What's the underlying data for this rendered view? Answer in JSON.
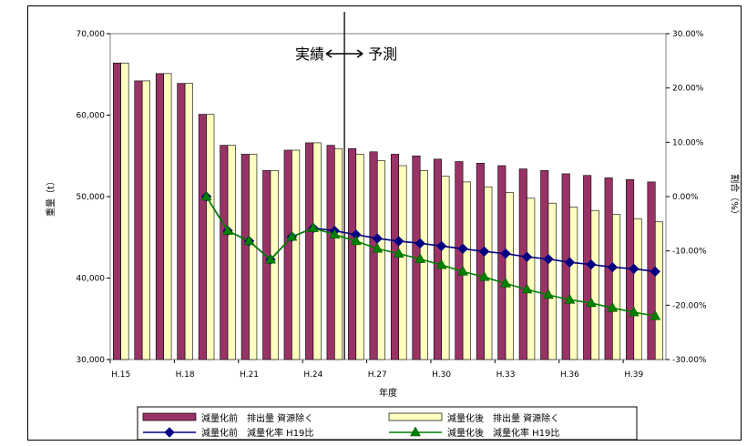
{
  "chart_data": {
    "type": "bar+line",
    "x": [
      "H.15",
      "H.16",
      "H.17",
      "H.18",
      "H.19",
      "H.20",
      "H.21",
      "H.22",
      "H.23",
      "H.24",
      "H.25",
      "H.26",
      "H.27",
      "H.28",
      "H.29",
      "H.30",
      "H.31",
      "H.32",
      "H.33",
      "H.34",
      "H.35",
      "H.36",
      "H.37",
      "H.38",
      "H.39",
      "H.40"
    ],
    "x_tick_labels": [
      "H.15",
      "H.18",
      "H.21",
      "H.24",
      "H.27",
      "H.30",
      "H.33",
      "H.36",
      "H.39"
    ],
    "xlabel": "年度",
    "ylabel_left": "重量（t）",
    "ylabel_right": "割合（%）",
    "ylim_left": [
      30000,
      70000
    ],
    "ylim_right": [
      -30,
      30
    ],
    "y_ticks_left": [
      "30,000",
      "40,000",
      "50,000",
      "60,000",
      "70,000"
    ],
    "y_ticks_right": [
      "-30.00%",
      "-20.00%",
      "-10.00%",
      "0.00%",
      "10.00%",
      "20.00%",
      "30.00%"
    ],
    "annotation": {
      "actual": "実績",
      "forecast": "予測",
      "divider_between": [
        "H.25",
        "H.26"
      ]
    },
    "series": [
      {
        "name": "減量化前　排出量 資源除く",
        "kind": "bar",
        "axis": "left",
        "color": "#993366",
        "values": [
          66400,
          64200,
          65100,
          63900,
          60100,
          56300,
          55200,
          53200,
          55700,
          56600,
          56300,
          55900,
          55500,
          55200,
          55000,
          54600,
          54300,
          54100,
          53800,
          53400,
          53200,
          52800,
          52600,
          52300,
          52100,
          51800
        ]
      },
      {
        "name": "減量化後　排出量 資源除く",
        "kind": "bar",
        "axis": "left",
        "color": "#ffffc0",
        "values": [
          66400,
          64200,
          65100,
          63900,
          60100,
          56300,
          55200,
          53200,
          55700,
          56600,
          55900,
          55200,
          54400,
          53800,
          53200,
          52500,
          51800,
          51200,
          50500,
          49800,
          49200,
          48700,
          48300,
          47800,
          47300,
          46900
        ]
      },
      {
        "name": "減量化前　減量化率 H19比",
        "kind": "line",
        "axis": "right",
        "color": "#000080",
        "marker": "diamond",
        "values": [
          null,
          null,
          null,
          null,
          0.0,
          -6.3,
          -8.2,
          -11.6,
          -7.4,
          -5.8,
          -6.3,
          -7.0,
          -7.7,
          -8.2,
          -8.6,
          -9.1,
          -9.6,
          -10.1,
          -10.5,
          -11.1,
          -11.5,
          -12.1,
          -12.5,
          -13.0,
          -13.3,
          -13.8
        ]
      },
      {
        "name": "減量化後　減量化率 H19比",
        "kind": "line",
        "axis": "right",
        "color": "#008000",
        "marker": "triangle",
        "values": [
          null,
          null,
          null,
          null,
          0.0,
          -6.3,
          -8.2,
          -11.6,
          -7.4,
          -5.8,
          -7.0,
          -8.2,
          -9.6,
          -10.5,
          -11.5,
          -12.6,
          -13.8,
          -14.8,
          -16.0,
          -17.1,
          -18.1,
          -19.0,
          -19.6,
          -20.5,
          -21.3,
          -22.0
        ]
      }
    ]
  }
}
